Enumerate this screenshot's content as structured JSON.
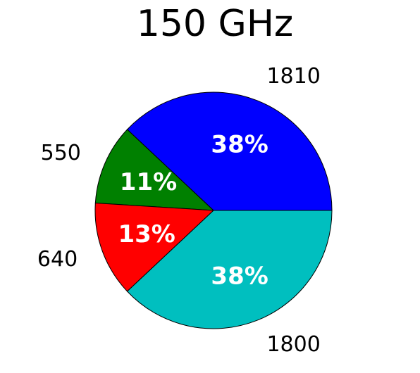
{
  "chart_data": {
    "type": "pie",
    "title": "150 GHz",
    "slices": [
      {
        "label": "1810",
        "value": 38,
        "percent_label": "38%",
        "color": "#0000ff"
      },
      {
        "label": "550",
        "value": 11,
        "percent_label": "11%",
        "color": "#008000"
      },
      {
        "label": "640",
        "value": 13,
        "percent_label": "13%",
        "color": "#ff0000"
      },
      {
        "label": "1800",
        "value": 38,
        "percent_label": "38%",
        "color": "#00bfbf"
      }
    ],
    "start_angle_deg": 0,
    "direction": "counterclockwise",
    "legend": "none"
  }
}
